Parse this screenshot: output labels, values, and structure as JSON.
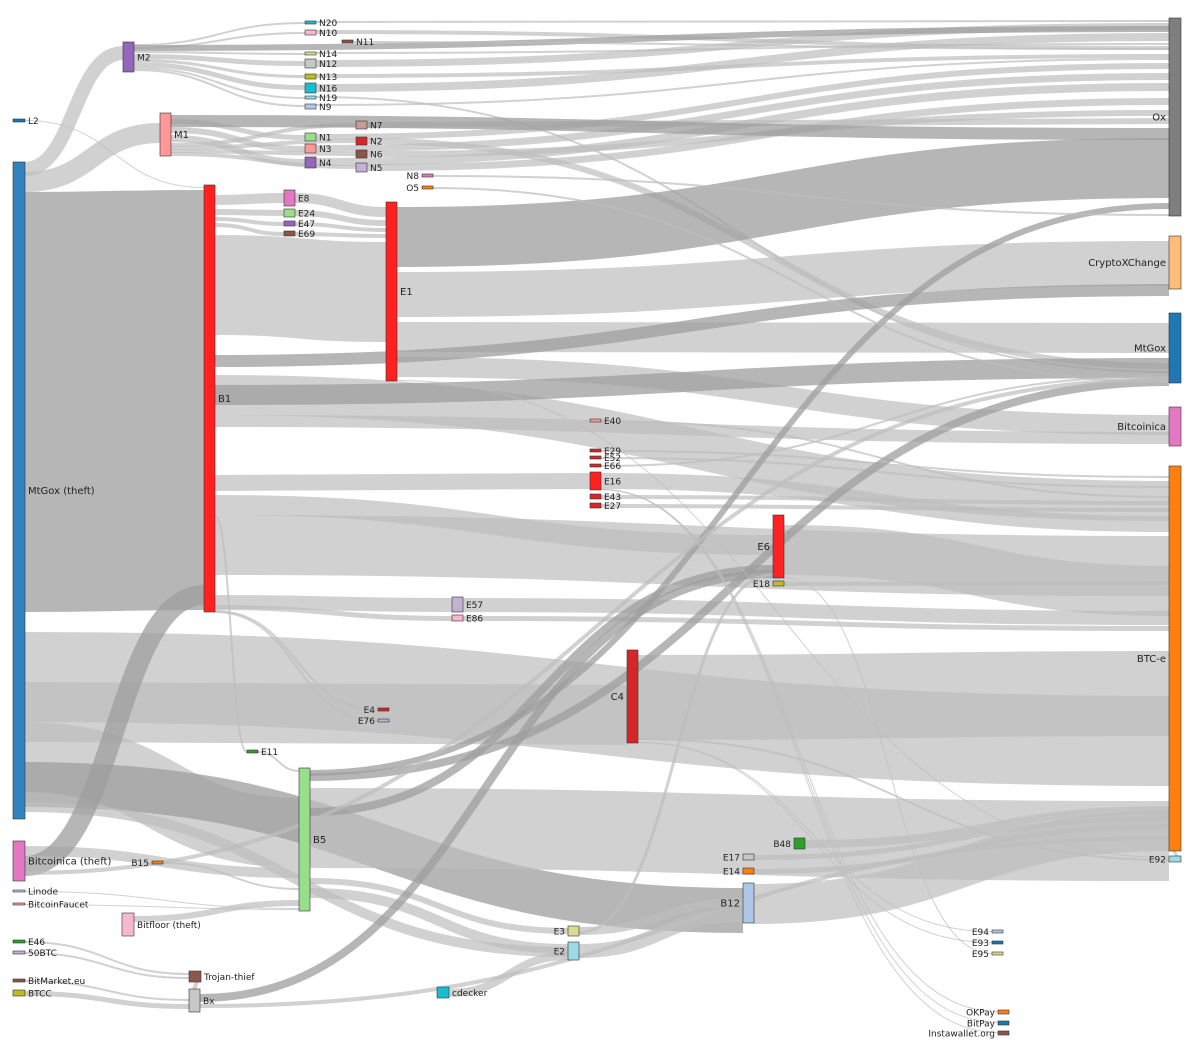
{
  "diagram": {
    "type": "sankey",
    "title": ""
  },
  "nodes": [
    {
      "id": "L2",
      "label": "L2",
      "color": "#1f77b4"
    },
    {
      "id": "MtGoxTheft",
      "label": "MtGox (theft)",
      "color": "#3182bd"
    },
    {
      "id": "BitcoinicaTheft",
      "label": "Bitcoinica (theft)",
      "color": "#e377c2"
    },
    {
      "id": "Linode",
      "label": "Linode",
      "color": "#aec7e8"
    },
    {
      "id": "BitcoinFaucet",
      "label": "BitcoinFaucet",
      "color": "#ff9896"
    },
    {
      "id": "E46",
      "label": "E46",
      "color": "#2ca02c"
    },
    {
      "id": "50BTC",
      "label": "50BTC",
      "color": "#c5b0d5"
    },
    {
      "id": "BitMarket",
      "label": "BitMarket.eu",
      "color": "#8c564b"
    },
    {
      "id": "BTCC",
      "label": "BTCC",
      "color": "#bcbd22"
    },
    {
      "id": "M2",
      "label": "M2",
      "color": "#9467bd"
    },
    {
      "id": "M1",
      "label": "M1",
      "color": "#ff9896"
    },
    {
      "id": "B15",
      "label": "B15",
      "color": "#ff7f0e"
    },
    {
      "id": "BitfloorTheft",
      "label": "Bitfloor (theft)",
      "color": "#f7b6d2"
    },
    {
      "id": "TrojanThief",
      "label": "Trojan-thief",
      "color": "#8c564b"
    },
    {
      "id": "Bx",
      "label": "Bx",
      "color": "#c7c7c7"
    },
    {
      "id": "B1",
      "label": "B1",
      "color": "#ff2020"
    },
    {
      "id": "E11",
      "label": "E11",
      "color": "#2ca02c"
    },
    {
      "id": "B5",
      "label": "B5",
      "color": "#98df8a"
    },
    {
      "id": "E8",
      "label": "E8",
      "color": "#e377c2"
    },
    {
      "id": "E24",
      "label": "E24",
      "color": "#98df8a"
    },
    {
      "id": "E47",
      "label": "E47",
      "color": "#9467bd"
    },
    {
      "id": "E69",
      "label": "E69",
      "color": "#8c564b"
    },
    {
      "id": "N20",
      "label": "N20",
      "color": "#17becf"
    },
    {
      "id": "N10",
      "label": "N10",
      "color": "#f7b6d2"
    },
    {
      "id": "N14",
      "label": "N14",
      "color": "#dbdb8d"
    },
    {
      "id": "N12",
      "label": "N12",
      "color": "#c7c7c7"
    },
    {
      "id": "N13",
      "label": "N13",
      "color": "#bcbd22"
    },
    {
      "id": "N16",
      "label": "N16",
      "color": "#17becf"
    },
    {
      "id": "N19",
      "label": "N19",
      "color": "#9edae5"
    },
    {
      "id": "N9",
      "label": "N9",
      "color": "#aec7e8"
    },
    {
      "id": "N1",
      "label": "N1",
      "color": "#98df8a"
    },
    {
      "id": "N3",
      "label": "N3",
      "color": "#ff9896"
    },
    {
      "id": "N4",
      "label": "N4",
      "color": "#9467bd"
    },
    {
      "id": "N11",
      "label": "N11",
      "color": "#8c564b"
    },
    {
      "id": "N7",
      "label": "N7",
      "color": "#c49c94"
    },
    {
      "id": "N2",
      "label": "N2",
      "color": "#d62728"
    },
    {
      "id": "N6",
      "label": "N6",
      "color": "#8c564b"
    },
    {
      "id": "N5",
      "label": "N5",
      "color": "#c5b0d5"
    },
    {
      "id": "N8",
      "label": "N8",
      "color": "#e377c2"
    },
    {
      "id": "O5",
      "label": "O5",
      "color": "#ff7f0e"
    },
    {
      "id": "E1",
      "label": "E1",
      "color": "#ff2020"
    },
    {
      "id": "E4",
      "label": "E4",
      "color": "#d62728"
    },
    {
      "id": "E76",
      "label": "E76",
      "color": "#c5b0d5"
    },
    {
      "id": "E57",
      "label": "E57",
      "color": "#c5b0d5"
    },
    {
      "id": "E86",
      "label": "E86",
      "color": "#f7b6d2"
    },
    {
      "id": "cdecker",
      "label": "cdecker",
      "color": "#17becf"
    },
    {
      "id": "E40",
      "label": "E40",
      "color": "#ff9896"
    },
    {
      "id": "E29",
      "label": "E29",
      "color": "#d62728"
    },
    {
      "id": "E52",
      "label": "E52",
      "color": "#d62728"
    },
    {
      "id": "E66",
      "label": "E66",
      "color": "#d62728"
    },
    {
      "id": "E16",
      "label": "E16",
      "color": "#ff2020"
    },
    {
      "id": "E43",
      "label": "E43",
      "color": "#d62728"
    },
    {
      "id": "E27",
      "label": "E27",
      "color": "#d62728"
    },
    {
      "id": "C4",
      "label": "C4",
      "color": "#d62728"
    },
    {
      "id": "E3",
      "label": "E3",
      "color": "#dbdb8d"
    },
    {
      "id": "E2",
      "label": "E2",
      "color": "#9edae5"
    },
    {
      "id": "E6",
      "label": "E6",
      "color": "#ff2020"
    },
    {
      "id": "E18",
      "label": "E18",
      "color": "#bcbd22"
    },
    {
      "id": "E17",
      "label": "E17",
      "color": "#c7c7c7"
    },
    {
      "id": "E14",
      "label": "E14",
      "color": "#ff7f0e"
    },
    {
      "id": "B12",
      "label": "B12",
      "color": "#aec7e8"
    },
    {
      "id": "B48",
      "label": "B48",
      "color": "#2ca02c"
    },
    {
      "id": "E94",
      "label": "E94",
      "color": "#aec7e8"
    },
    {
      "id": "E93",
      "label": "E93",
      "color": "#1f77b4"
    },
    {
      "id": "E95",
      "label": "E95",
      "color": "#dbdb8d"
    },
    {
      "id": "OKPay",
      "label": "OKPay",
      "color": "#ff7f0e"
    },
    {
      "id": "BitPay",
      "label": "BitPay",
      "color": "#1f77b4"
    },
    {
      "id": "Instawallet",
      "label": "Instawallet.org",
      "color": "#8c564b"
    },
    {
      "id": "Ox",
      "label": "Ox",
      "color": "#7f7f7f"
    },
    {
      "id": "CryptoXChange",
      "label": "CryptoXChange",
      "color": "#ffbb78"
    },
    {
      "id": "MtGox",
      "label": "MtGox",
      "color": "#1f77b4"
    },
    {
      "id": "Bitcoinica",
      "label": "Bitcoinica",
      "color": "#e377c2"
    },
    {
      "id": "BTCe",
      "label": "BTC-e",
      "color": "#ff7f0e"
    },
    {
      "id": "E92",
      "label": "E92",
      "color": "#9edae5"
    }
  ],
  "colors": {
    "link": "#bdbdbd",
    "link_dark": "#9e9e9e"
  }
}
